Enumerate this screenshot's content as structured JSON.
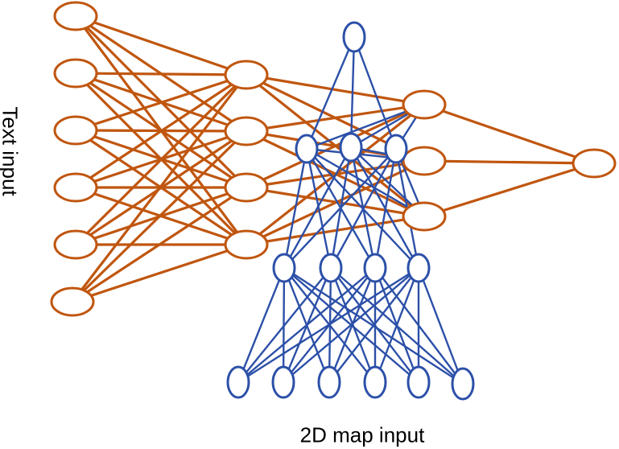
{
  "labels": {
    "left": "Text input",
    "bottom": "2D map input"
  },
  "colors": {
    "text_network": "#c0560f",
    "map_network": "#2c50a8",
    "background": "#ffffff"
  },
  "text_network": {
    "layers": [
      {
        "name": "text-input-layer",
        "nodes": 6
      },
      {
        "name": "text-hidden-layer",
        "nodes": 4
      },
      {
        "name": "merged-layer",
        "nodes": 3
      },
      {
        "name": "output-layer",
        "nodes": 1
      }
    ],
    "connectivity": "fully-connected"
  },
  "map_network": {
    "layers": [
      {
        "name": "map-input-layer",
        "nodes": 6
      },
      {
        "name": "map-hidden-layer-1",
        "nodes": 4
      },
      {
        "name": "map-hidden-layer-2",
        "nodes": 3
      },
      {
        "name": "map-top-node",
        "nodes": 1
      }
    ],
    "connectivity": "fully-connected",
    "feeds_into": "merged-layer"
  }
}
